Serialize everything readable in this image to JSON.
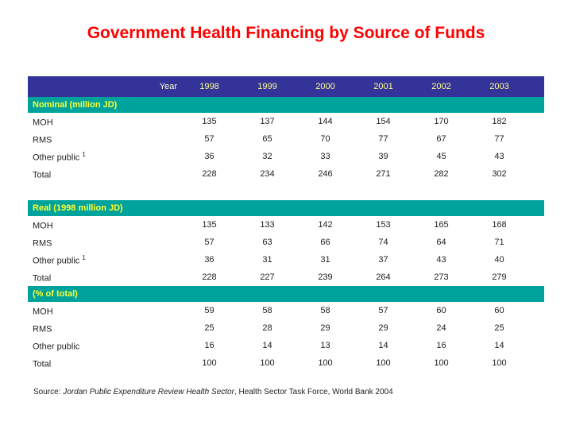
{
  "slide": {
    "title": "Government Health Financing by Source of Funds",
    "source": {
      "prefix": "Source: ",
      "italic": "Jordan Public Expenditure Review Health Sector",
      "rest": ", Health Sector Task Force, World Bank 2004"
    }
  },
  "colors": {
    "title_red": "#ff0000",
    "header_bg": "#333399",
    "header_text": "#ffff8c",
    "band_bg": "#00a39b",
    "band_text": "#ffff33"
  },
  "table": {
    "year_label": "Year",
    "years": [
      "1998",
      "1999",
      "2000",
      "2001",
      "2002",
      "2003"
    ],
    "sections": [
      {
        "heading": "Nominal (million JD)",
        "rows": [
          {
            "label": "MOH",
            "footnote": "",
            "values": [
              "135",
              "137",
              "144",
              "154",
              "170",
              "182"
            ]
          },
          {
            "label": "RMS",
            "footnote": "",
            "values": [
              "57",
              "65",
              "70",
              "77",
              "67",
              "77"
            ]
          },
          {
            "label": "Other public",
            "footnote": "1",
            "values": [
              "36",
              "32",
              "33",
              "39",
              "45",
              "43"
            ]
          },
          {
            "label": "Total",
            "footnote": "",
            "values": [
              "228",
              "234",
              "246",
              "271",
              "282",
              "302"
            ]
          }
        ]
      },
      {
        "heading": "Real (1998 million JD)",
        "rows": [
          {
            "label": "MOH",
            "footnote": "",
            "values": [
              "135",
              "133",
              "142",
              "153",
              "165",
              "168"
            ]
          },
          {
            "label": "RMS",
            "footnote": "",
            "values": [
              "57",
              "63",
              "66",
              "74",
              "64",
              "71"
            ]
          },
          {
            "label": "Other public",
            "footnote": "1",
            "values": [
              "36",
              "31",
              "31",
              "37",
              "43",
              "40"
            ]
          },
          {
            "label": "Total",
            "footnote": "",
            "values": [
              "228",
              "227",
              "239",
              "264",
              "273",
              "279"
            ]
          }
        ]
      },
      {
        "heading": "(% of total)",
        "rows": [
          {
            "label": "MOH",
            "footnote": "",
            "values": [
              "59",
              "58",
              "58",
              "57",
              "60",
              "60"
            ]
          },
          {
            "label": "RMS",
            "footnote": "",
            "values": [
              "25",
              "28",
              "29",
              "29",
              "24",
              "25"
            ]
          },
          {
            "label": "Other public",
            "footnote": "",
            "values": [
              "16",
              "14",
              "13",
              "14",
              "16",
              "14"
            ]
          },
          {
            "label": "Total",
            "footnote": "",
            "values": [
              "100",
              "100",
              "100",
              "100",
              "100",
              "100"
            ]
          }
        ]
      }
    ]
  }
}
